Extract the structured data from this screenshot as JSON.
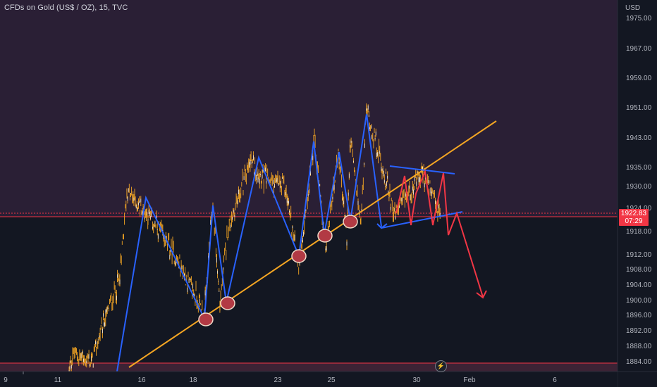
{
  "header": {
    "legend": "CFDs on Gold (US$ / OZ), 15, TVC"
  },
  "price_axis": {
    "currency": "USD",
    "ticks": [
      "1975.00",
      "1967.00",
      "1959.00",
      "1951.00",
      "1943.00",
      "1935.00",
      "1930.00",
      "1924.00",
      "1918.00",
      "1912.00",
      "1908.00",
      "1904.00",
      "1900.00",
      "1896.00",
      "1892.00",
      "1888.00",
      "1884.00"
    ]
  },
  "last_price": {
    "value": "1922.83",
    "countdown": "07:29"
  },
  "time_axis": {
    "ticks": [
      "9",
      "11",
      "16",
      "18",
      "23",
      "25",
      "30",
      "Feb",
      "6"
    ]
  },
  "icons": {
    "bolt": "lightning-icon"
  },
  "colors": {
    "background": "#131722",
    "zone_upper": "#2a1f35",
    "zone_lower_band": "#3c2335",
    "candles": "#f5a623",
    "trendline": "#f5a623",
    "blue_lines": "#2962ff",
    "red_projection": "#f23645",
    "touch_circles": "#c0392b"
  },
  "chart_data": {
    "type": "line",
    "title": "CFDs on Gold (US$ / OZ), 15, TVC",
    "xlabel": "",
    "ylabel": "USD",
    "x_ticks": [
      "9",
      "11",
      "16",
      "18",
      "23",
      "25",
      "30",
      "Feb",
      "6"
    ],
    "ylim": [
      1882,
      1978
    ],
    "last_price": 1922.83,
    "series": [
      {
        "x": [
          "Jan 10",
          "Jan 11",
          "Jan 12",
          "Jan 13",
          "Jan 13",
          "Jan 16",
          "Jan 17",
          "Jan 18",
          "Jan 19",
          "Jan 19",
          "Jan 20",
          "Jan 20",
          "Jan 23",
          "Jan 23",
          "Jan 24",
          "Jan 25",
          "Jan 25",
          "Jan 26",
          "Jan 27",
          "Jan 27",
          "Jan 27",
          "Jan 28",
          "Jan 29",
          "Jan 30",
          "Jan 30",
          "Jan 31",
          "Jan 31"
        ],
        "values": [
          1881,
          1886,
          1884,
          1896,
          1906,
          1929,
          1923,
          1913,
          1897,
          1926,
          1899,
          1919,
          1937,
          1933,
          1930,
          1909,
          1943,
          1914,
          1940,
          1917,
          1943,
          1920,
          1951,
          1936,
          1923,
          1934,
          1922
        ]
      }
    ],
    "annotations": {
      "support_trendline": {
        "from": [
          "Jan 13",
          1882
        ],
        "to": [
          "Feb 1",
          1949
        ]
      },
      "touch_points": [
        1895,
        1899,
        1912,
        1916,
        1921
      ],
      "triangle_upper": {
        "from": 1935,
        "to": 1934
      },
      "triangle_lower": {
        "from": 1918.5,
        "to": 1923
      },
      "projection_target": 1900
    }
  }
}
